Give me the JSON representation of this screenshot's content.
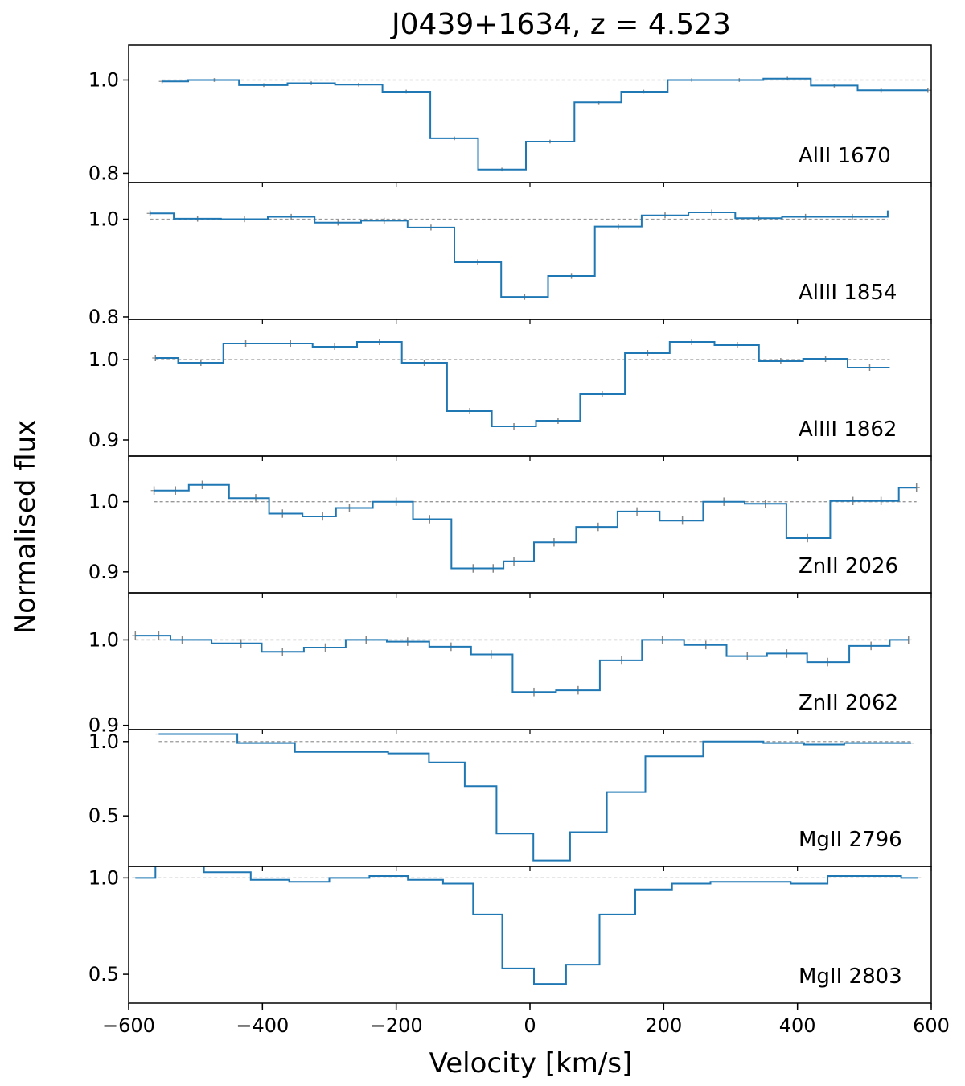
{
  "chart_data": {
    "type": "line",
    "title": "J0439+1634,   z = 4.523",
    "xlabel": "Velocity [km/s]",
    "ylabel": "Normalised flux",
    "xlim": [
      -600,
      600
    ],
    "x_ticks": [
      -600,
      -400,
      -200,
      0,
      200,
      400,
      600
    ],
    "x_tick_labels": [
      "−600",
      "−400",
      "−200",
      "0",
      "200",
      "400",
      "600"
    ],
    "continuum_level": 1.0,
    "continuum_style": "dashed gray",
    "spectrum_color": "#1f77b4",
    "error_color": "#888888",
    "grid": false,
    "panels": [
      {
        "label": "AlII 1670",
        "ylim": [
          0.78,
          1.075
        ],
        "y_ticks": [
          0.8,
          1.0
        ],
        "y_tick_labels": [
          "0.8",
          "1.0"
        ],
        "x": [
          -550,
          -472,
          -398,
          -327,
          -256,
          -185,
          -113,
          -42,
          30,
          103,
          170,
          242,
          313,
          385,
          455,
          525,
          595
        ],
        "flux": [
          0.997,
          1.0,
          0.989,
          0.993,
          0.99,
          0.975,
          0.875,
          0.808,
          0.868,
          0.952,
          0.975,
          1.0,
          1.0,
          1.003,
          0.988,
          0.978,
          0.978
        ],
        "error": [
          0.004,
          0.004,
          0.004,
          0.004,
          0.004,
          0.004,
          0.004,
          0.004,
          0.004,
          0.004,
          0.004,
          0.004,
          0.004,
          0.004,
          0.004,
          0.004,
          0.004
        ]
      },
      {
        "label": "AlIII 1854",
        "ylim": [
          0.795,
          1.075
        ],
        "y_ticks": [
          0.8,
          1.0
        ],
        "y_tick_labels": [
          "0.8",
          "1.0"
        ],
        "x": [
          -568,
          -497,
          -427,
          -357,
          -287,
          -218,
          -148,
          -78,
          -8,
          62,
          132,
          202,
          272,
          342,
          412,
          482
        ],
        "flux": [
          1.012,
          1.001,
          1.0,
          1.005,
          0.993,
          0.997,
          0.983,
          0.912,
          0.841,
          0.884,
          0.985,
          1.008,
          1.014,
          1.002,
          1.005,
          1.005
        ],
        "end_x": 535,
        "end_flux": 1.018,
        "error": [
          0.006,
          0.006,
          0.006,
          0.006,
          0.006,
          0.006,
          0.006,
          0.006,
          0.006,
          0.006,
          0.006,
          0.006,
          0.006,
          0.006,
          0.006,
          0.006
        ]
      },
      {
        "label": "AlIII 1862",
        "ylim": [
          0.88,
          1.05
        ],
        "y_ticks": [
          0.9,
          1.0
        ],
        "y_tick_labels": [
          "0.9",
          "1.0"
        ],
        "x": [
          -560,
          -492,
          -425,
          -358,
          -292,
          -225,
          -158,
          -90,
          -24,
          42,
          108,
          176,
          242,
          310,
          375,
          442,
          508
        ],
        "flux": [
          1.002,
          0.996,
          1.02,
          1.02,
          1.016,
          1.022,
          0.996,
          0.936,
          0.917,
          0.924,
          0.957,
          1.008,
          1.022,
          1.018,
          0.998,
          1.001,
          0.99
        ],
        "end_x": 538,
        "end_flux": 0.99,
        "error": [
          0.004,
          0.004,
          0.004,
          0.004,
          0.004,
          0.004,
          0.004,
          0.004,
          0.004,
          0.004,
          0.004,
          0.004,
          0.004,
          0.004,
          0.004,
          0.004,
          0.004
        ]
      },
      {
        "label": "ZnII 2026",
        "ylim": [
          0.87,
          1.065
        ],
        "y_ticks": [
          0.9,
          1.0
        ],
        "y_tick_labels": [
          "0.9",
          "1.0"
        ],
        "x": [
          -562,
          -530,
          -490,
          -410,
          -370,
          -310,
          -270,
          -200,
          -150,
          -85,
          -55,
          -24,
          36,
          102,
          160,
          228,
          290,
          352,
          415,
          483,
          525,
          578
        ],
        "flux": [
          1.016,
          1.016,
          1.024,
          1.005,
          0.983,
          0.979,
          0.991,
          1.0,
          0.975,
          0.905,
          0.905,
          0.915,
          0.942,
          0.964,
          0.986,
          0.973,
          1.0,
          0.997,
          0.948,
          1.001,
          1.001,
          1.02
        ],
        "error": [
          0.006,
          0.006,
          0.006,
          0.006,
          0.006,
          0.006,
          0.006,
          0.006,
          0.006,
          0.006,
          0.006,
          0.006,
          0.006,
          0.006,
          0.006,
          0.006,
          0.006,
          0.006,
          0.006,
          0.006,
          0.006,
          0.006
        ]
      },
      {
        "label": "ZnII 2062",
        "ylim": [
          0.895,
          1.055
        ],
        "y_ticks": [
          0.9,
          1.0
        ],
        "y_tick_labels": [
          "0.9",
          "1.0"
        ],
        "x": [
          -590,
          -555,
          -520,
          -432,
          -370,
          -306,
          -245,
          -183,
          -118,
          -58,
          6,
          72,
          137,
          198,
          263,
          325,
          384,
          445,
          510,
          566
        ],
        "flux": [
          1.005,
          1.005,
          1.0,
          0.996,
          0.986,
          0.991,
          1.0,
          0.998,
          0.992,
          0.983,
          0.939,
          0.941,
          0.976,
          1.0,
          0.994,
          0.981,
          0.984,
          0.974,
          0.993,
          1.0
        ],
        "error": [
          0.005,
          0.005,
          0.005,
          0.005,
          0.005,
          0.005,
          0.005,
          0.005,
          0.005,
          0.005,
          0.005,
          0.005,
          0.005,
          0.005,
          0.005,
          0.005,
          0.005,
          0.005,
          0.005,
          0.005
        ]
      },
      {
        "label": "MgII 2796",
        "ylim": [
          0.16,
          1.08
        ],
        "y_ticks": [
          0.5,
          1.0
        ],
        "y_tick_labels": [
          "0.5",
          "1.0"
        ],
        "x": [
          -555,
          -500,
          -375,
          -328,
          -242,
          -182,
          -120,
          -75,
          -25,
          35,
          85,
          145,
          200,
          318,
          380,
          440,
          500,
          570
        ],
        "flux": [
          1.05,
          1.05,
          0.99,
          0.93,
          0.93,
          0.92,
          0.86,
          0.7,
          0.38,
          0.2,
          0.39,
          0.66,
          0.9,
          1.0,
          0.99,
          0.98,
          0.99,
          0.99
        ],
        "error": [
          0.0,
          0.0,
          0.0,
          0.0,
          0.0,
          0.0,
          0.0,
          0.0,
          0.0,
          0.0,
          0.0,
          0.0,
          0.0,
          0.0,
          0.0,
          0.0,
          0.0,
          0.0
        ]
      },
      {
        "label": "MgII 2803",
        "ylim": [
          0.35,
          1.06
        ],
        "y_ticks": [
          0.5,
          1.0
        ],
        "y_tick_labels": [
          "0.5",
          "1.0"
        ],
        "x": [
          -590,
          -530,
          -445,
          -390,
          -330,
          -270,
          -210,
          -155,
          -105,
          -65,
          -18,
          30,
          78,
          130,
          185,
          240,
          300,
          360,
          420,
          470,
          530,
          580
        ],
        "flux": [
          1.0,
          1.09,
          1.03,
          0.99,
          0.98,
          1.0,
          1.01,
          0.99,
          0.97,
          0.81,
          0.53,
          0.45,
          0.55,
          0.81,
          0.94,
          0.97,
          0.98,
          0.98,
          0.97,
          1.01,
          1.01,
          1.0
        ],
        "error": [
          0.0,
          0.0,
          0.0,
          0.0,
          0.0,
          0.0,
          0.0,
          0.0,
          0.0,
          0.0,
          0.0,
          0.0,
          0.0,
          0.0,
          0.0,
          0.0,
          0.0,
          0.0,
          0.0,
          0.0,
          0.0,
          0.0
        ]
      }
    ]
  }
}
